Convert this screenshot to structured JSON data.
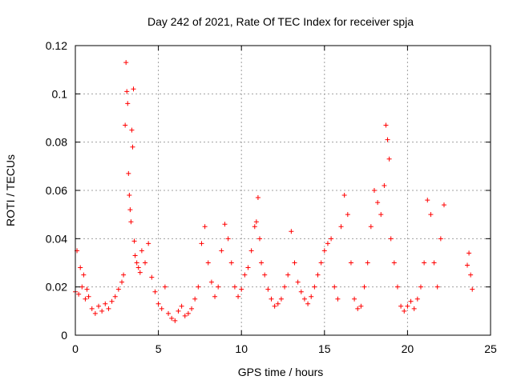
{
  "chart_data": {
    "type": "scatter",
    "title": "Day 242 of 2021, Rate Of TEC Index for receiver spja",
    "xlabel": "GPS time / hours",
    "ylabel": "ROTI / TECUs",
    "xlim": [
      0,
      25
    ],
    "ylim": [
      0,
      0.12
    ],
    "xticks": [
      0,
      5,
      10,
      15,
      20,
      25
    ],
    "xtick_labels": [
      "0",
      "5",
      "10",
      "15",
      "20",
      "25"
    ],
    "yticks": [
      0,
      0.02,
      0.04,
      0.06,
      0.08,
      0.1,
      0.12
    ],
    "ytick_labels": [
      "0",
      "0.02",
      "0.04",
      "0.06",
      "0.08",
      "0.1",
      "0.12"
    ],
    "grid": true,
    "marker": "plus",
    "color": "#ff0000",
    "series": [
      {
        "name": "ROTI",
        "x": [
          0.0,
          0.1,
          0.2,
          0.3,
          0.4,
          0.5,
          0.6,
          0.7,
          0.8,
          1.0,
          1.2,
          1.4,
          1.6,
          1.8,
          2.0,
          2.2,
          2.4,
          2.6,
          2.8,
          2.9,
          3.0,
          3.05,
          3.1,
          3.15,
          3.2,
          3.25,
          3.3,
          3.35,
          3.4,
          3.45,
          3.5,
          3.55,
          3.6,
          3.7,
          3.8,
          3.9,
          4.0,
          4.2,
          4.4,
          4.6,
          4.8,
          5.0,
          5.2,
          5.4,
          5.6,
          5.8,
          6.0,
          6.2,
          6.4,
          6.6,
          6.8,
          7.0,
          7.2,
          7.4,
          7.6,
          7.8,
          8.0,
          8.2,
          8.4,
          8.6,
          8.8,
          9.0,
          9.2,
          9.4,
          9.6,
          9.8,
          10.0,
          10.2,
          10.4,
          10.6,
          10.8,
          10.9,
          11.0,
          11.1,
          11.2,
          11.4,
          11.6,
          11.8,
          12.0,
          12.2,
          12.4,
          12.6,
          12.8,
          13.0,
          13.2,
          13.4,
          13.6,
          13.8,
          14.0,
          14.2,
          14.4,
          14.6,
          14.8,
          15.0,
          15.2,
          15.4,
          15.6,
          15.8,
          16.0,
          16.2,
          16.4,
          16.6,
          16.8,
          17.0,
          17.2,
          17.4,
          17.6,
          17.8,
          18.0,
          18.2,
          18.4,
          18.6,
          18.7,
          18.8,
          18.9,
          19.0,
          19.2,
          19.4,
          19.6,
          19.8,
          20.0,
          20.2,
          20.4,
          20.6,
          20.8,
          21.0,
          21.2,
          21.4,
          21.6,
          21.8,
          22.0,
          22.2,
          23.6,
          23.7,
          23.8,
          23.9
        ],
        "y": [
          0.018,
          0.035,
          0.017,
          0.028,
          0.02,
          0.025,
          0.015,
          0.019,
          0.016,
          0.011,
          0.009,
          0.012,
          0.01,
          0.013,
          0.011,
          0.014,
          0.016,
          0.019,
          0.022,
          0.025,
          0.087,
          0.113,
          0.101,
          0.096,
          0.067,
          0.058,
          0.052,
          0.047,
          0.085,
          0.078,
          0.102,
          0.039,
          0.033,
          0.03,
          0.028,
          0.026,
          0.035,
          0.03,
          0.038,
          0.024,
          0.018,
          0.013,
          0.011,
          0.02,
          0.009,
          0.007,
          0.006,
          0.01,
          0.012,
          0.008,
          0.009,
          0.011,
          0.015,
          0.02,
          0.038,
          0.045,
          0.03,
          0.022,
          0.016,
          0.02,
          0.035,
          0.046,
          0.04,
          0.03,
          0.02,
          0.016,
          0.019,
          0.025,
          0.028,
          0.035,
          0.045,
          0.047,
          0.057,
          0.04,
          0.03,
          0.025,
          0.019,
          0.015,
          0.012,
          0.013,
          0.015,
          0.02,
          0.025,
          0.043,
          0.03,
          0.022,
          0.018,
          0.015,
          0.013,
          0.016,
          0.02,
          0.025,
          0.03,
          0.035,
          0.038,
          0.04,
          0.02,
          0.015,
          0.045,
          0.058,
          0.05,
          0.03,
          0.015,
          0.011,
          0.012,
          0.02,
          0.03,
          0.045,
          0.06,
          0.055,
          0.05,
          0.062,
          0.087,
          0.081,
          0.073,
          0.04,
          0.03,
          0.02,
          0.012,
          0.01,
          0.012,
          0.014,
          0.011,
          0.015,
          0.02,
          0.03,
          0.056,
          0.05,
          0.03,
          0.02,
          0.04,
          0.054,
          0.029,
          0.034,
          0.025,
          0.019
        ]
      }
    ]
  }
}
